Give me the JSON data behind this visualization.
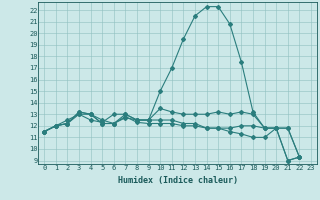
{
  "xlabel": "Humidex (Indice chaleur)",
  "background_color": "#cce8e8",
  "line_color": "#2a7d7d",
  "xlim": [
    -0.5,
    23.5
  ],
  "ylim": [
    8.7,
    22.7
  ],
  "yticks": [
    9,
    10,
    11,
    12,
    13,
    14,
    15,
    16,
    17,
    18,
    19,
    20,
    21,
    22
  ],
  "xticks": [
    0,
    1,
    2,
    3,
    4,
    5,
    6,
    7,
    8,
    9,
    10,
    11,
    12,
    13,
    14,
    15,
    16,
    17,
    18,
    19,
    20,
    21,
    22,
    23
  ],
  "series": [
    [
      11.5,
      12.0,
      12.2,
      13.0,
      13.0,
      12.5,
      12.2,
      12.7,
      12.5,
      12.5,
      15.0,
      17.0,
      19.5,
      21.5,
      22.3,
      22.3,
      20.8,
      17.5,
      13.2,
      11.8,
      11.8,
      9.0,
      9.3
    ],
    [
      11.5,
      12.0,
      12.2,
      13.2,
      13.0,
      12.2,
      12.2,
      13.0,
      12.5,
      12.5,
      13.5,
      13.2,
      13.0,
      13.0,
      13.0,
      13.2,
      13.0,
      13.2,
      13.0,
      11.8,
      11.8,
      9.0,
      9.3
    ],
    [
      11.5,
      12.0,
      12.2,
      13.2,
      13.0,
      12.2,
      12.2,
      12.8,
      12.3,
      12.2,
      12.2,
      12.2,
      12.0,
      12.0,
      11.8,
      11.8,
      11.5,
      11.3,
      11.0,
      11.0,
      11.8,
      11.8,
      9.3
    ],
    [
      11.5,
      12.0,
      12.5,
      13.0,
      12.5,
      12.3,
      13.0,
      13.0,
      12.5,
      12.5,
      12.5,
      12.5,
      12.2,
      12.2,
      11.8,
      11.8,
      11.8,
      12.0,
      12.0,
      11.8,
      11.8,
      11.8,
      9.3
    ]
  ],
  "tick_fontsize": 5.0,
  "xlabel_fontsize": 6.0,
  "marker_size": 2.0,
  "line_width": 0.8
}
